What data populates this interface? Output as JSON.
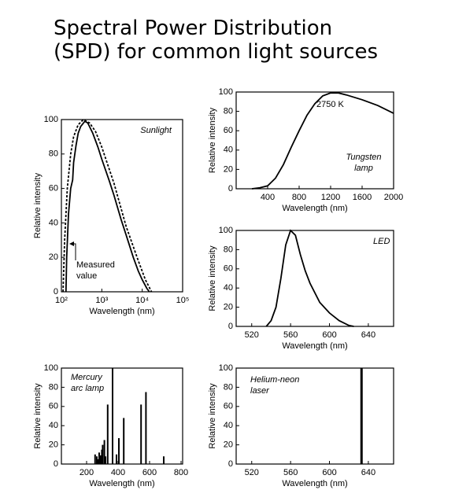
{
  "title_lines": [
    "Spectral Power Distribution",
    "(SPD) for common light sources"
  ],
  "chart_data": [
    {
      "type": "line",
      "xscale": "log",
      "xlabel": "Wavelength (nm)",
      "ylabel": "Relative intensity",
      "xlim": [
        100,
        100000
      ],
      "ylim": [
        0,
        100
      ],
      "xticks": [
        {
          "value": 100,
          "label": "10²"
        },
        {
          "value": 1000,
          "label": "10³"
        },
        {
          "value": 10000,
          "label": "10⁴"
        },
        {
          "value": 100000,
          "label": "10⁵"
        }
      ],
      "yticks": [
        0,
        20,
        40,
        60,
        80,
        100
      ],
      "annotations": [
        [
          "Sunlight"
        ],
        [
          "Measured",
          "value"
        ]
      ],
      "series": [
        {
          "color": "#000000",
          "style": "solid",
          "x": [
            130,
            135,
            150,
            170,
            190,
            200,
            230,
            260,
            300,
            380,
            450,
            600,
            800,
            1000,
            1500,
            2000,
            3000,
            4000,
            6000,
            8000,
            10000,
            13000,
            15000
          ],
          "values": [
            0,
            20,
            45,
            60,
            65,
            75,
            85,
            92,
            96,
            99,
            98,
            92,
            84,
            77,
            65,
            56,
            42,
            33,
            20,
            12,
            7,
            2,
            0
          ]
        },
        {
          "color": "#000000",
          "style": "dashed",
          "x": [
            110,
            120,
            140,
            170,
            200,
            260,
            350,
            500,
            700,
            1000,
            2000,
            4000,
            8000,
            12000,
            17000
          ],
          "values": [
            0,
            30,
            60,
            80,
            90,
            97,
            100,
            98,
            93,
            84,
            63,
            38,
            18,
            7,
            0
          ]
        }
      ]
    },
    {
      "type": "line",
      "xlabel": "Wavelength (nm)",
      "ylabel": "Relative intensity",
      "xlim": [
        0,
        2000
      ],
      "ylim": [
        0,
        100
      ],
      "xticks": [
        400,
        800,
        1200,
        1600,
        2000
      ],
      "yticks": [
        0,
        20,
        40,
        60,
        80,
        100
      ],
      "annotations": [
        [
          "2750 K"
        ],
        [
          "Tungsten",
          "lamp"
        ]
      ],
      "series": [
        {
          "color": "#000000",
          "style": "solid",
          "x": [
            200,
            300,
            400,
            500,
            600,
            700,
            800,
            900,
            1000,
            1100,
            1200,
            1300,
            1400,
            1600,
            1800,
            2000
          ],
          "values": [
            0,
            1,
            3,
            11,
            25,
            43,
            60,
            76,
            88,
            96,
            99,
            99,
            97,
            92,
            86,
            78
          ]
        }
      ]
    },
    {
      "type": "line",
      "xlabel": "Wavelength (nm)",
      "ylabel": "Relative intensity",
      "xlim": [
        504,
        666
      ],
      "ylim": [
        0,
        100
      ],
      "xticks": [
        520,
        560,
        600,
        640
      ],
      "yticks": [
        0,
        20,
        40,
        60,
        80,
        100
      ],
      "annotations": [
        [
          "LED"
        ]
      ],
      "series": [
        {
          "color": "#000000",
          "style": "solid",
          "x": [
            535,
            540,
            545,
            550,
            555,
            560,
            565,
            570,
            575,
            580,
            590,
            600,
            610,
            620,
            625
          ],
          "values": [
            0,
            6,
            20,
            50,
            85,
            100,
            95,
            75,
            58,
            45,
            25,
            14,
            6,
            1,
            0
          ]
        }
      ]
    },
    {
      "type": "bar",
      "xlabel": "Wavelength (nm)",
      "ylabel": "Relative intensity",
      "xlim": [
        40,
        810
      ],
      "ylim": [
        0,
        100
      ],
      "xticks": [
        200,
        400,
        600,
        800
      ],
      "yticks": [
        0,
        20,
        40,
        60,
        80,
        100
      ],
      "annotations": [
        [
          "Mercury",
          "arc lamp"
        ]
      ],
      "color": "#000000",
      "x": [
        254,
        265,
        270,
        280,
        289,
        297,
        302,
        313,
        320,
        334,
        365,
        390,
        405,
        436,
        546,
        577,
        690
      ],
      "values": [
        10,
        8,
        5,
        12,
        9,
        15,
        20,
        25,
        8,
        62,
        100,
        10,
        27,
        48,
        62,
        75,
        8
      ]
    },
    {
      "type": "bar",
      "xlabel": "Wavelength (nm)",
      "ylabel": "Relative intensity",
      "xlim": [
        504,
        666
      ],
      "ylim": [
        0,
        100
      ],
      "xticks": [
        520,
        560,
        600,
        640
      ],
      "yticks": [
        0,
        20,
        40,
        60,
        80,
        100
      ],
      "annotations": [
        [
          "Helium-neon",
          "laser"
        ]
      ],
      "color": "#000000",
      "x": [
        633
      ],
      "values": [
        100
      ]
    }
  ]
}
